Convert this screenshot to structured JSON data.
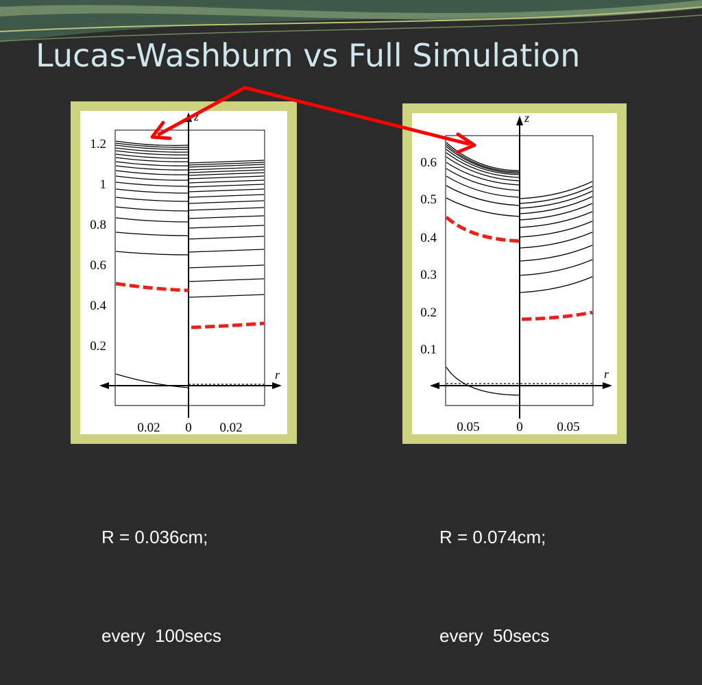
{
  "slide": {
    "title": "Lucas-Washburn vs Full Simulation"
  },
  "colors": {
    "background": "#2b2b2b",
    "title": "#cfe6ec",
    "panel_frame": "#cdd27e",
    "dashed_profile": "#e8211a",
    "arrow": "#ff0000"
  },
  "panels": [
    {
      "caption_line1": "R = 0.036cm;",
      "caption_line2": "every  100secs",
      "z_axis_label": "z",
      "r_axis_label": "r",
      "y_ticks": [
        "1.2",
        "1",
        "0.8",
        "0.6",
        "0.4",
        "0.2"
      ],
      "x_ticks": [
        "0.02",
        "0",
        "0.02"
      ]
    },
    {
      "caption_line1": "R = 0.074cm;",
      "caption_line2": "every  50secs",
      "z_axis_label": "z",
      "r_axis_label": "r",
      "y_ticks": [
        "0.6",
        "0.5",
        "0.4",
        "0.3",
        "0.2",
        "0.1"
      ],
      "x_ticks": [
        "0.05",
        "0",
        "0.05"
      ]
    }
  ]
}
